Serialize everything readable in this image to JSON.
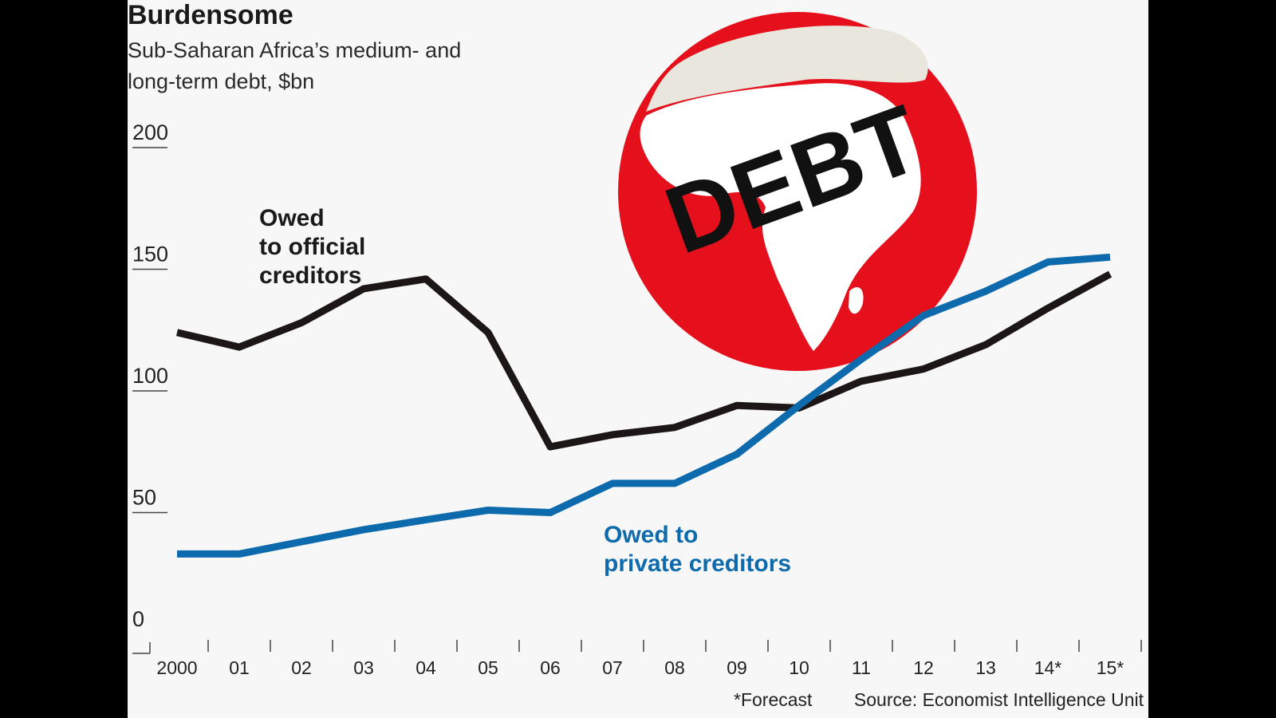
{
  "chart_data": {
    "type": "line",
    "title": "Burdensome",
    "subtitle": "Sub-Saharan Africa’s medium- and long-term debt, $bn",
    "categories": [
      "2000",
      "01",
      "02",
      "03",
      "04",
      "05",
      "06",
      "07",
      "08",
      "09",
      "10",
      "11",
      "12",
      "13",
      "14*",
      "15*"
    ],
    "yticks": [
      "0",
      "50",
      "100",
      "150",
      "200"
    ],
    "ylim": [
      0,
      200
    ],
    "series": [
      {
        "name": "Owed to official creditors",
        "label_lines": [
          "Owed",
          "to official",
          "creditors"
        ],
        "color": "#1c1716",
        "values": [
          124,
          118,
          128,
          142,
          146,
          124,
          77,
          82,
          85,
          94,
          93,
          104,
          109,
          119,
          134,
          148
        ]
      },
      {
        "name": "Owed to private creditors",
        "label_lines": [
          "Owed to",
          "private creditors"
        ],
        "color": "#0d6aac",
        "values": [
          33,
          33,
          38,
          43,
          47,
          51,
          50,
          62,
          62,
          74,
          94,
          113,
          131,
          141,
          153,
          155
        ]
      }
    ],
    "grid": false,
    "legend": "direct labels"
  },
  "illustration": {
    "text": "DEBT",
    "globe_color": "#e5101b",
    "land_color": "#ffffff"
  },
  "footer": {
    "forecast_note": "*Forecast",
    "source": "Source: Economist Intelligence Unit"
  }
}
